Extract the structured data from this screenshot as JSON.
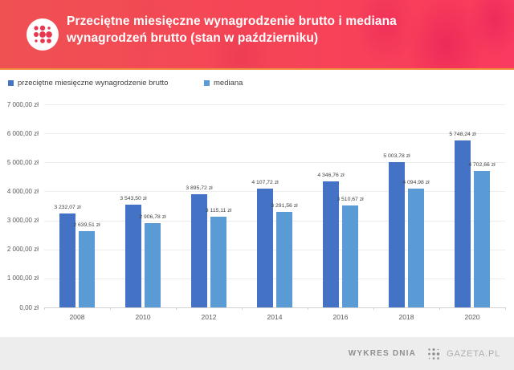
{
  "header": {
    "title_line1": "Przeciętne miesięczne wynagrodzenie brutto i mediana",
    "title_line2": "wynagrodzeń brutto (stan w październiku)"
  },
  "legend": [
    {
      "label": "przeciętne miesięczne wynagrodzenie brutto",
      "color": "#4472c4"
    },
    {
      "label": "mediana",
      "color": "#5b9bd5"
    }
  ],
  "footer": {
    "left_label": "WYKRES DNIA",
    "brand": "GAZETA.PL"
  },
  "colors": {
    "header_gradient_left": "#ef5153",
    "header_gradient_right": "#fa3a5e",
    "header_accent_line": "#ef8b3d",
    "series1_bar": "#4472c4",
    "series2_bar": "#5b9bd5",
    "gridline": "#ececec",
    "axis_text": "#595959",
    "footer_bg": "#ededed",
    "logo_dot_red": "#e8374f",
    "logo_dot_gray": "#8f8f8f"
  },
  "chart_data": {
    "type": "bar",
    "title": "Przeciętne miesięczne wynagrodzenie brutto i mediana wynagrodzeń brutto (stan w październiku)",
    "categories": [
      "2008",
      "2010",
      "2012",
      "2014",
      "2016",
      "2018",
      "2020"
    ],
    "series": [
      {
        "name": "przeciętne miesięczne wynagrodzenie brutto",
        "color": "#4472c4",
        "values": [
          3232.07,
          3543.5,
          3895.72,
          4107.72,
          4346.76,
          5003.78,
          5748.24
        ],
        "labels": [
          "3 232,07 zł",
          "3 543,50 zł",
          "3 895,72 zł",
          "4 107,72 zł",
          "4 346,76 zł",
          "5 003,78 zł",
          "5 748,24 zł"
        ]
      },
      {
        "name": "mediana",
        "color": "#5b9bd5",
        "values": [
          2639.51,
          2906.78,
          3115.11,
          3291.56,
          3510.67,
          4094.98,
          4702.66
        ],
        "labels": [
          "2 639,51 zł",
          "2 906,78 zł",
          "3 115,11 zł",
          "3 291,56 zł",
          "3 510,67 zł",
          "4 094,98 zł",
          "4 702,66 zł"
        ]
      }
    ],
    "xlabel": "",
    "ylabel": "",
    "ylim": [
      0,
      7000
    ],
    "ytick_step": 1000,
    "ytick_labels": [
      "0,00 zł",
      "1 000,00 zł",
      "2 000,00 zł",
      "3 000,00 zł",
      "4 000,00 zł",
      "5 000,00 zł",
      "6 000,00 zł",
      "7 000,00 zł"
    ],
    "grid": true,
    "legend_position": "top-left"
  }
}
